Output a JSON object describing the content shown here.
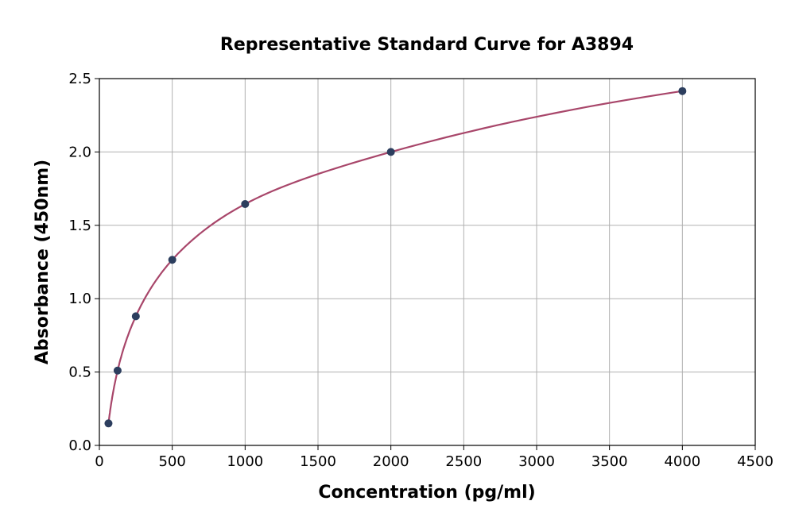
{
  "chart_data": {
    "type": "scatter",
    "title": "Representative Standard Curve for A3894",
    "xlabel": "Concentration (pg/ml)",
    "ylabel": "Absorbance (450nm)",
    "xlim": [
      0,
      4500
    ],
    "ylim": [
      0,
      2.5
    ],
    "xticks": [
      "0",
      "500",
      "1000",
      "1500",
      "2000",
      "2500",
      "3000",
      "3500",
      "4000",
      "4500"
    ],
    "yticks": [
      "0.0",
      "0.5",
      "1.0",
      "1.5",
      "2.0",
      "2.5"
    ],
    "grid": true,
    "points": {
      "x": [
        62.5,
        125,
        250,
        500,
        1000,
        2000,
        4000
      ],
      "y": [
        0.15,
        0.51,
        0.88,
        1.265,
        1.645,
        2.0,
        2.415
      ]
    },
    "colors": {
      "points": "#2c3e5e",
      "curve": "#a8466a",
      "grid": "#b0b0b0"
    }
  }
}
